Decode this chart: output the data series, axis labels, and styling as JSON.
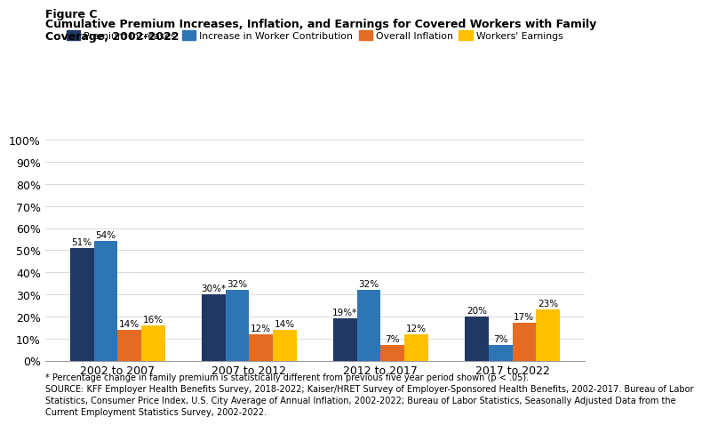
{
  "title_line1": "Figure C",
  "title_line2": "Cumulative Premium Increases, Inflation, and Earnings for Covered Workers with Family",
  "title_line3": "Coverage, 2002-2022",
  "categories": [
    "2002 to 2007",
    "2007 to 2012",
    "2012 to 2017",
    "2017 to 2022"
  ],
  "series": {
    "Premium Increases": [
      51,
      30,
      19,
      20
    ],
    "Increase in Worker Contribution": [
      54,
      32,
      32,
      7
    ],
    "Overall Inflation": [
      14,
      12,
      7,
      17
    ],
    "Workers' Earnings": [
      16,
      14,
      12,
      23
    ]
  },
  "labels": {
    "Premium Increases": [
      "51%",
      "30%*",
      "19%*",
      "20%"
    ],
    "Increase in Worker Contribution": [
      "54%",
      "32%",
      "32%",
      "7%"
    ],
    "Overall Inflation": [
      "14%",
      "12%",
      "7%",
      "17%"
    ],
    "Workers' Earnings": [
      "16%",
      "14%",
      "12%",
      "23%"
    ]
  },
  "colors": {
    "Premium Increases": "#1f3864",
    "Increase in Worker Contribution": "#2e75b6",
    "Overall Inflation": "#e36b23",
    "Workers' Earnings": "#ffc000"
  },
  "ylim": [
    0,
    110
  ],
  "yticks": [
    0,
    10,
    20,
    30,
    40,
    50,
    60,
    70,
    80,
    90,
    100
  ],
  "ytick_labels": [
    "0%",
    "10%",
    "20%",
    "30%",
    "40%",
    "50%",
    "60%",
    "70%",
    "80%",
    "90%",
    "100%"
  ],
  "footnote_line1": "* Percentage change in family premium is statistically different from previous five year period shown (p < .05).",
  "footnote_line2": "SOURCE: KFF Employer Health Benefits Survey, 2018-2022; Kaiser/HRET Survey of Employer-Sponsored Health Benefits, 2002-2017. Bureau of Labor",
  "footnote_line3": "Statistics, Consumer Price Index, U.S. City Average of Annual Inflation, 2002-2022; Bureau of Labor Statistics, Seasonally Adjusted Data from the",
  "footnote_line4": "Current Employment Statistics Survey, 2002-2022.",
  "bar_width": 0.18,
  "label_fontsize": 7.5,
  "tick_fontsize": 9,
  "footnote_fontsize": 7
}
